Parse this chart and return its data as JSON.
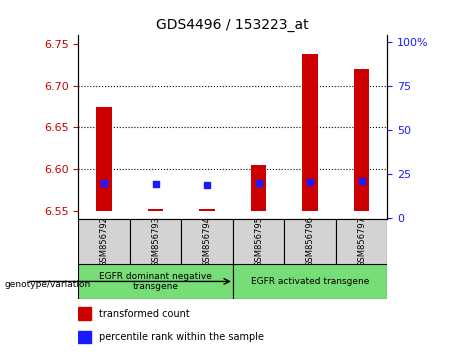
{
  "title": "GDS4496 / 153223_at",
  "samples": [
    "GSM856792",
    "GSM856793",
    "GSM856794",
    "GSM856795",
    "GSM856796",
    "GSM856797"
  ],
  "transformed_counts": [
    6.675,
    6.553,
    6.552,
    6.605,
    6.738,
    6.72
  ],
  "percentile_ranks": [
    20.0,
    19.5,
    18.5,
    19.8,
    20.2,
    21.0
  ],
  "bar_bottom": 6.55,
  "ylim_left": [
    6.54,
    6.76
  ],
  "ylim_right": [
    -1,
    104
  ],
  "yticks_left": [
    6.55,
    6.6,
    6.65,
    6.7,
    6.75
  ],
  "yticks_right": [
    0,
    25,
    50,
    75,
    100
  ],
  "ytick_labels_right": [
    "0",
    "25",
    "50",
    "75",
    "100%"
  ],
  "grid_values": [
    6.6,
    6.65,
    6.7
  ],
  "bar_color": "#cc0000",
  "dot_color": "#1a1aff",
  "left_tick_color": "#cc0000",
  "right_tick_color": "#1a1aff",
  "groups": [
    {
      "label": "EGFR dominant negative\ntransgene",
      "indices": [
        0,
        1,
        2
      ],
      "color": "#77dd77"
    },
    {
      "label": "EGFR activated transgene",
      "indices": [
        3,
        4,
        5
      ],
      "color": "#77dd77"
    }
  ],
  "group_arrow_label": "genotype/variation",
  "legend_items": [
    {
      "color": "#cc0000",
      "label": "transformed count"
    },
    {
      "color": "#1a1aff",
      "label": "percentile rank within the sample"
    }
  ]
}
